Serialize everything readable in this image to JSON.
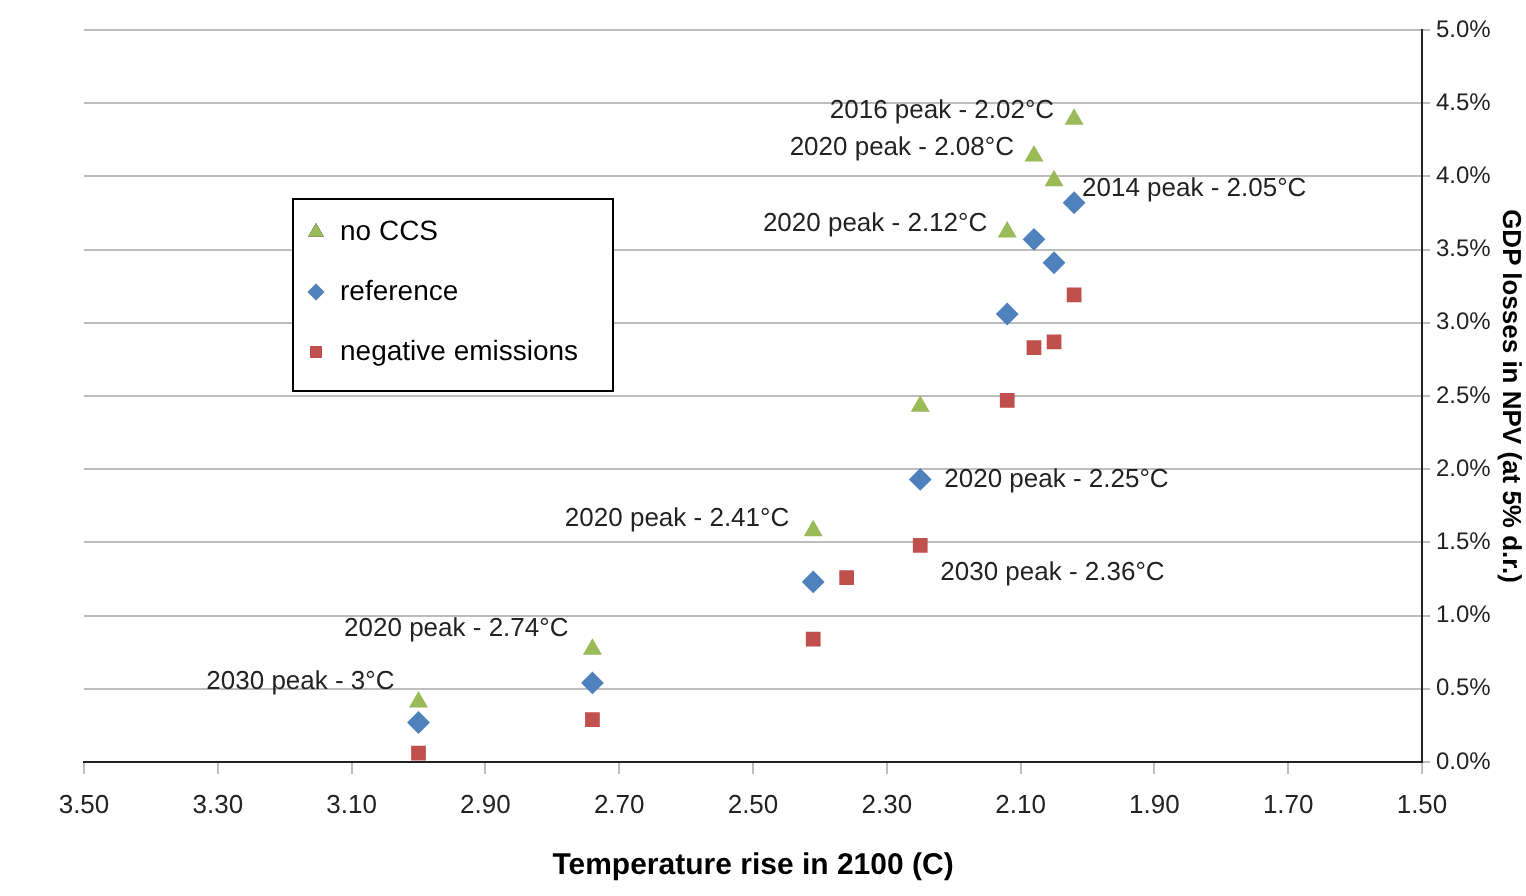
{
  "chart_data": {
    "type": "scatter",
    "xlabel": "Temperature rise in 2100 (C)",
    "ylabel": "GDP losses in NPV (at 5% d.r.)",
    "xlim": [
      3.5,
      1.5
    ],
    "xticks": [
      {
        "value": 3.5,
        "label": "3.50"
      },
      {
        "value": 3.3,
        "label": "3.30"
      },
      {
        "value": 3.1,
        "label": "3.10"
      },
      {
        "value": 2.9,
        "label": "2.90"
      },
      {
        "value": 2.7,
        "label": "2.70"
      },
      {
        "value": 2.5,
        "label": "2.50"
      },
      {
        "value": 2.3,
        "label": "2.30"
      },
      {
        "value": 2.1,
        "label": "2.10"
      },
      {
        "value": 1.9,
        "label": "1.90"
      },
      {
        "value": 1.7,
        "label": "1.70"
      },
      {
        "value": 1.5,
        "label": "1.50"
      }
    ],
    "ylim": [
      0,
      5
    ],
    "yticks": [
      {
        "value": 0,
        "label": "0.0%"
      },
      {
        "value": 0.5,
        "label": "0.5%"
      },
      {
        "value": 1,
        "label": "1.0%"
      },
      {
        "value": 1.5,
        "label": "1.5%"
      },
      {
        "value": 2,
        "label": "2.0%"
      },
      {
        "value": 2.5,
        "label": "2.5%"
      },
      {
        "value": 3,
        "label": "3.0%"
      },
      {
        "value": 3.5,
        "label": "3.5%"
      },
      {
        "value": 4,
        "label": "4.0%"
      },
      {
        "value": 4.5,
        "label": "4.5%"
      },
      {
        "value": 5,
        "label": "5.0%"
      }
    ],
    "grid": "y",
    "legend": "top left",
    "series": [
      {
        "name": "no CCS",
        "color": "#9bbb59",
        "marker": "triangle",
        "x": [
          3.0,
          2.74,
          2.41,
          2.25,
          2.12,
          2.08,
          2.05,
          2.02
        ],
        "values": [
          0.41,
          0.77,
          1.58,
          2.43,
          3.62,
          4.14,
          3.97,
          4.39
        ]
      },
      {
        "name": "reference",
        "color": "#4f81bd",
        "marker": "diamond",
        "x": [
          3.0,
          2.74,
          2.41,
          2.25,
          2.12,
          2.08,
          2.05,
          2.02
        ],
        "values": [
          0.27,
          0.54,
          1.23,
          1.93,
          3.06,
          3.57,
          3.41,
          3.82
        ]
      },
      {
        "name": "negative emissions",
        "color": "#c0504d",
        "marker": "square",
        "x": [
          3.0,
          2.74,
          2.41,
          2.36,
          2.25,
          2.12,
          2.08,
          2.05,
          2.02
        ],
        "values": [
          0.06,
          0.29,
          0.84,
          1.26,
          1.48,
          2.47,
          2.83,
          2.87,
          3.19
        ]
      }
    ],
    "annotations": [
      {
        "text": "2016 peak - 2.02°C",
        "x": 2.02,
        "y": 4.39
      },
      {
        "text": "2020 peak - 2.08°C",
        "x": 2.08,
        "y": 4.14
      },
      {
        "text": "2014 peak - 2.05°C",
        "x": 2.05,
        "y": 3.97
      },
      {
        "text": "2020 peak - 2.12°C",
        "x": 2.12,
        "y": 3.62
      },
      {
        "text": "2020 peak - 2.25°C",
        "x": 2.25,
        "y": 1.93
      },
      {
        "text": "2030 peak - 2.36°C",
        "x": 2.25,
        "y": 1.48
      },
      {
        "text": "2020 peak - 2.41°C",
        "x": 2.41,
        "y": 1.58
      },
      {
        "text": "2020 peak - 2.74°C",
        "x": 2.74,
        "y": 0.77
      },
      {
        "text": "2030 peak - 3°C",
        "x": 3.0,
        "y": 0.41
      }
    ]
  }
}
